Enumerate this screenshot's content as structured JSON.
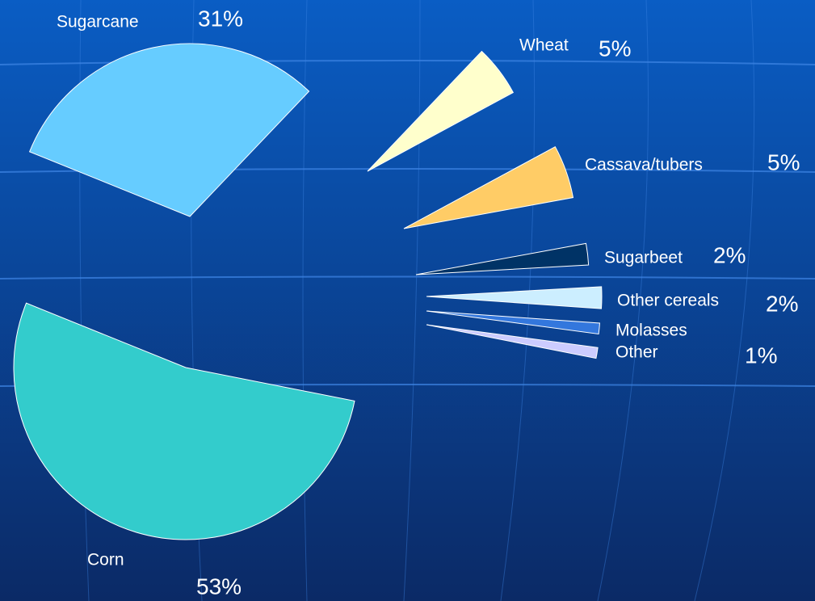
{
  "chart_data": {
    "type": "pie",
    "categories": [
      "Sugarcane",
      "Wheat",
      "Cassava/tubers",
      "Sugarbeet",
      "Other cereals",
      "Molasses",
      "Other",
      "Corn"
    ],
    "values": [
      31,
      5,
      5,
      2,
      2,
      1,
      1,
      53
    ],
    "value_labels": [
      "31%",
      "5%",
      "5%",
      "2%",
      "2%",
      null,
      "1%",
      "53%"
    ],
    "colors": [
      "#66ccff",
      "#ffffcc",
      "#ffcc66",
      "#003366",
      "#cceeff",
      "#3377dd",
      "#ccccff",
      "#33cccc"
    ]
  }
}
